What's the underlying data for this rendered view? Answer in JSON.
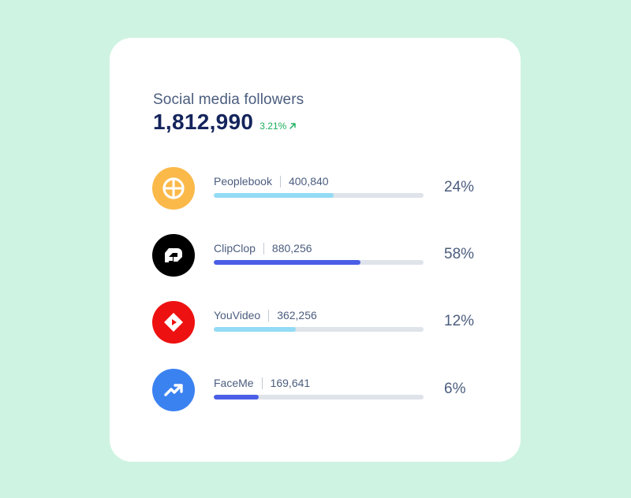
{
  "header": {
    "title": "Social media followers",
    "total": "1,812,990",
    "change": "3.21%"
  },
  "platforms": [
    {
      "name": "Peoplebook",
      "followers": "400,840",
      "percent_label": "24%",
      "share": 0.57,
      "logo_color": "#fbb94a",
      "bar_color": "#93dbf4",
      "icon": "peoplebook-logo-icon"
    },
    {
      "name": "ClipClop",
      "followers": "880,256",
      "percent_label": "58%",
      "share": 0.7,
      "logo_color": "#000000",
      "bar_color": "#4a5ee6",
      "icon": "clipclop-logo-icon"
    },
    {
      "name": "YouVideo",
      "followers": "362,256",
      "percent_label": "12%",
      "share": 0.39,
      "logo_color": "#ee1111",
      "bar_color": "#93dbf4",
      "icon": "youvideo-logo-icon"
    },
    {
      "name": "FaceMe",
      "followers": "169,641",
      "percent_label": "6%",
      "share": 0.215,
      "logo_color": "#3b82f1",
      "bar_color": "#4a5ee6",
      "icon": "faceme-logo-icon"
    }
  ],
  "colors": {
    "background": "#cff3e2",
    "card": "#ffffff",
    "track": "#dfe3ea",
    "positive": "#1aaf5d"
  }
}
